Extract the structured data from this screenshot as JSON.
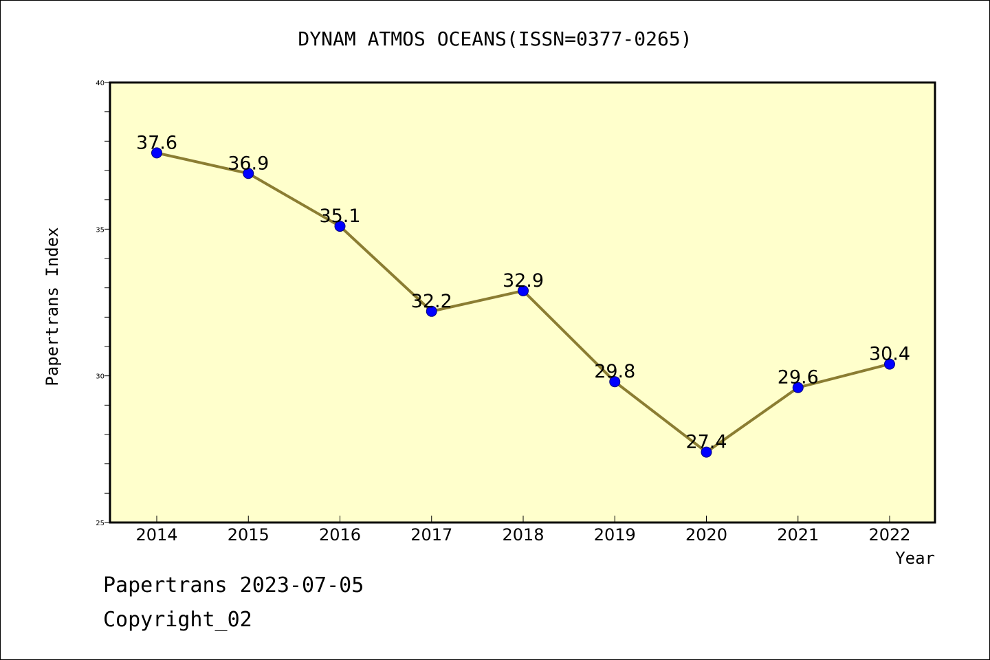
{
  "chart_data": {
    "type": "line",
    "title": "DYNAM ATMOS OCEANS(ISSN=0377-0265)",
    "xlabel": "Year",
    "ylabel": "Papertrans Index",
    "x": [
      "2014",
      "2015",
      "2016",
      "2017",
      "2018",
      "2019",
      "2020",
      "2021",
      "2022"
    ],
    "series": [
      {
        "values": [
          37.6,
          36.9,
          35.1,
          32.2,
          32.9,
          29.8,
          27.4,
          29.6,
          30.4
        ],
        "labels": [
          "37.6",
          "36.9",
          "35.1",
          "32.2",
          "32.9",
          "29.8",
          "27.4",
          "29.6",
          "30.4"
        ]
      }
    ],
    "ylim": [
      25,
      40
    ],
    "yticks": [
      "25",
      "30",
      "35",
      "40"
    ],
    "y_minor_step": 1,
    "grid": false,
    "colors": {
      "plot_background": "#ffffcc",
      "line": "#8b7d32",
      "marker": "#0000ff",
      "axes": "#000000"
    }
  },
  "footer": {
    "line1": "Papertrans 2023-07-05",
    "line2": "Copyright_02"
  }
}
